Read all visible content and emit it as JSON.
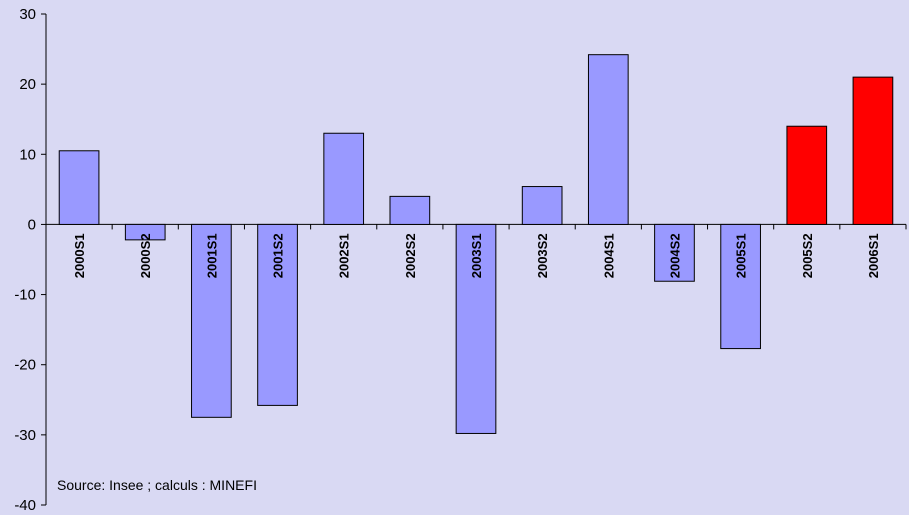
{
  "chart_data": {
    "type": "bar",
    "categories": [
      "2000S1",
      "2000S2",
      "2001S1",
      "2001S2",
      "2002S1",
      "2002S2",
      "2003S1",
      "2003S2",
      "2004S1",
      "2004S2",
      "2005S1",
      "2005S2",
      "2006S1"
    ],
    "values": [
      10.5,
      -2.2,
      -27.5,
      -25.8,
      13.0,
      4.0,
      -29.8,
      5.4,
      24.2,
      -8.1,
      -17.7,
      14.0,
      21.0
    ],
    "colors": [
      "#9999ff",
      "#9999ff",
      "#9999ff",
      "#9999ff",
      "#9999ff",
      "#9999ff",
      "#9999ff",
      "#9999ff",
      "#9999ff",
      "#9999ff",
      "#9999ff",
      "#ff0000",
      "#ff0000"
    ],
    "ylim": [
      -40,
      30
    ],
    "yticks": [
      30,
      20,
      10,
      0,
      -10,
      -20,
      -30,
      -40
    ],
    "grid": false,
    "source": "Source: Insee ; calculs : MINEFI"
  }
}
